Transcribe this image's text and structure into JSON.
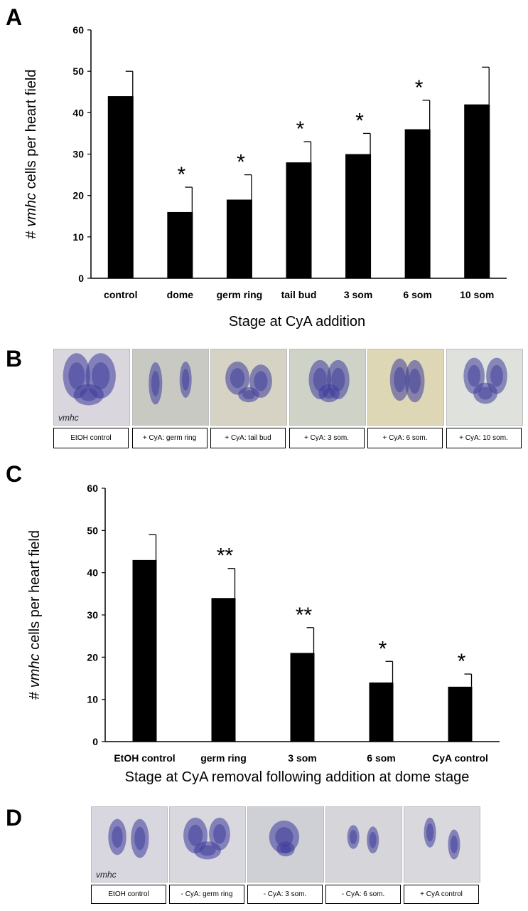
{
  "panels": {
    "A": "A",
    "B": "B",
    "C": "C",
    "D": "D"
  },
  "chart_data": [
    {
      "type": "bar",
      "title": "",
      "xlabel": "Stage at CyA addition",
      "ylabel_italic": "vmhc",
      "ylabel_prefix": "# ",
      "ylabel_suffix": " cells per heart field",
      "ylim": [
        0,
        60
      ],
      "yticks": [
        "0",
        "10",
        "20",
        "30",
        "40",
        "50",
        "60"
      ],
      "categories": [
        "control",
        "dome",
        "germ ring",
        "tail bud",
        "3 som",
        "6 som",
        "10 som"
      ],
      "values": [
        44,
        16,
        19,
        28,
        30,
        36,
        42
      ],
      "error_upper": [
        50,
        22,
        25,
        33,
        35,
        43,
        51
      ],
      "significance": [
        "",
        "*",
        "*",
        "*",
        "*",
        "*",
        ""
      ],
      "bar_color": "#000000",
      "grid": false
    },
    {
      "type": "bar",
      "title": "",
      "xlabel": "Stage at CyA removal following addition at dome stage",
      "ylabel_italic": "vmhc",
      "ylabel_prefix": "# ",
      "ylabel_suffix": " cells per heart field",
      "ylim": [
        0,
        60
      ],
      "yticks": [
        "0",
        "10",
        "20",
        "30",
        "40",
        "50",
        "60"
      ],
      "categories": [
        "EtOH control",
        "germ ring",
        "3 som",
        "6 som",
        "CyA control"
      ],
      "values": [
        43,
        34,
        21,
        14,
        13
      ],
      "error_upper": [
        49,
        41,
        27,
        19,
        16
      ],
      "significance": [
        "",
        "**",
        "**",
        "*",
        "*"
      ],
      "bar_color": "#000000",
      "grid": false
    }
  ],
  "strip_b": {
    "marker_label": "vmhc",
    "captions": [
      "EtOH control",
      "+ CyA: germ ring",
      "+ CyA: tail bud",
      "+ CyA: 3 som.",
      "+ CyA: 6 som.",
      "+ CyA: 10 som."
    ],
    "backgrounds": [
      "#d9d6de",
      "#c9c9c3",
      "#d6d3c5",
      "#cfd2c7",
      "#ddd7b5",
      "#dfe2dc"
    ],
    "stain_color": "#3c3a9a"
  },
  "strip_d": {
    "marker_label": "vmhc",
    "captions": [
      "EtOH  control",
      "- CyA: germ ring",
      "- CyA: 3 som.",
      "- CyA: 6 som.",
      "+ CyA control"
    ],
    "backgrounds": [
      "#d8d7df",
      "#d9d8de",
      "#cfcfd6",
      "#d6d5da",
      "#d9d8dc"
    ],
    "stain_color": "#3c3a9a"
  }
}
